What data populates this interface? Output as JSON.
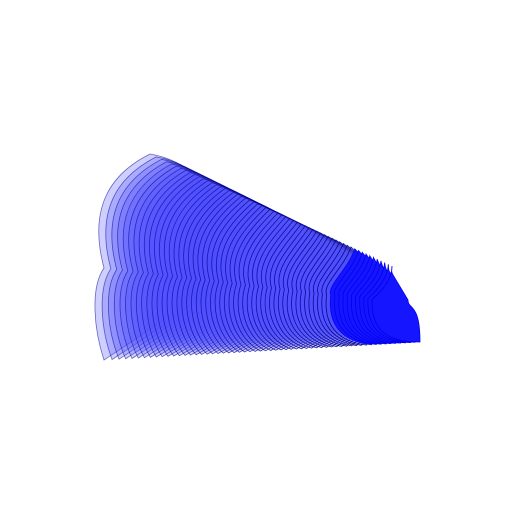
{
  "figure": {
    "background": "#ffffff",
    "stroke_color": "#0000ee",
    "stroke_dark": "#00008b",
    "fill_color": "#ffffff",
    "fill_shade": "#1515ff",
    "curve_count": 60
  }
}
